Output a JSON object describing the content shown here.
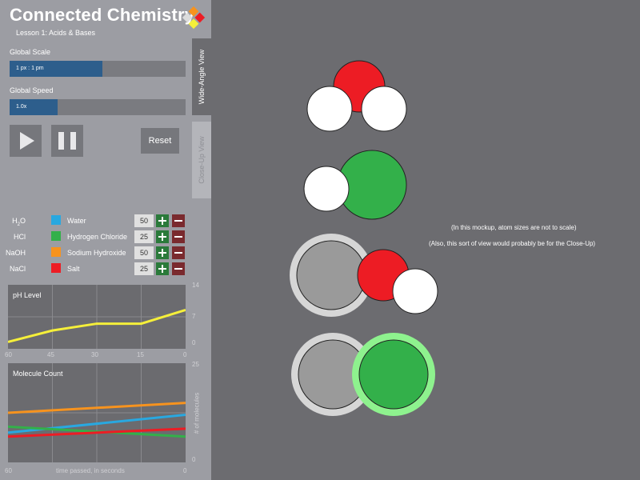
{
  "header": {
    "title": "Connected Chemistry",
    "subtitle": "Lesson 1: Acids & Bases"
  },
  "controls": {
    "global_scale": {
      "label": "Global Scale",
      "value_text": "1 px : 1 pm",
      "level_fraction": 0.5
    },
    "global_speed": {
      "label": "Global Speed",
      "value_text": "1.0x",
      "level_fraction": 0.27
    },
    "reset_label": "Reset"
  },
  "tabs": {
    "wide_angle": "Wide-Angle View",
    "close_up": "Close-Up View"
  },
  "molecules": [
    {
      "formula": "H2O",
      "name": "Water",
      "count": "50",
      "color": "#29a8e0"
    },
    {
      "formula": "HCl",
      "name": "Hydrogen Chloride",
      "count": "25",
      "color": "#33b04a"
    },
    {
      "formula": "NaOH",
      "name": "Sodium Hydroxide",
      "count": "50",
      "color": "#f7931e"
    },
    {
      "formula": "NaCl",
      "name": "Salt",
      "count": "25",
      "color": "#ed1c24"
    }
  ],
  "ph_chart": {
    "title": "pH Level",
    "y_ticks": [
      "14",
      "7",
      "0"
    ],
    "x_ticks": [
      "60",
      "45",
      "30",
      "15",
      "0"
    ]
  },
  "count_chart": {
    "title": "Molecule Count",
    "y_ticks": [
      "25",
      "0"
    ],
    "x_ticks": [
      "60",
      "0"
    ],
    "ylabel": "# of molecules",
    "xlabel": "time passed, in seconds"
  },
  "chart_data": [
    {
      "type": "line",
      "title": "pH Level",
      "xlim": [
        60,
        0
      ],
      "ylim": [
        0,
        14
      ],
      "grid": true,
      "series": [
        {
          "color": "#f5ef3a",
          "x": [
            60,
            45,
            30,
            15,
            0
          ],
          "y": [
            1.5,
            4,
            5.5,
            5.5,
            8.5
          ]
        }
      ]
    },
    {
      "type": "line",
      "title": "Molecule Count",
      "xlabel": "time passed, in seconds",
      "ylabel": "# of molecules",
      "xlim": [
        60,
        0
      ],
      "ylim": [
        0,
        25
      ],
      "grid": true,
      "series": [
        {
          "color": "#f7931e",
          "x": [
            60,
            0
          ],
          "y": [
            12.5,
            15
          ]
        },
        {
          "color": "#29a8e0",
          "x": [
            60,
            0
          ],
          "y": [
            7.5,
            12
          ]
        },
        {
          "color": "#33b04a",
          "x": [
            60,
            0
          ],
          "y": [
            9,
            6.5
          ]
        },
        {
          "color": "#ed1c24",
          "x": [
            60,
            0
          ],
          "y": [
            6.5,
            8.5
          ]
        }
      ]
    }
  ],
  "notes": {
    "line1": "(In this mockup, atom sizes are not to scale)",
    "line2": "(Also, this sort of view would probably be for the Close-Up)"
  },
  "colors": {
    "oxygen": "#ed1c24",
    "chlorine": "#33b04a",
    "hydrogen": "#ffffff",
    "sodium": "#9a9a9a",
    "panel": "#9c9da3",
    "view": "#6c6c70"
  }
}
